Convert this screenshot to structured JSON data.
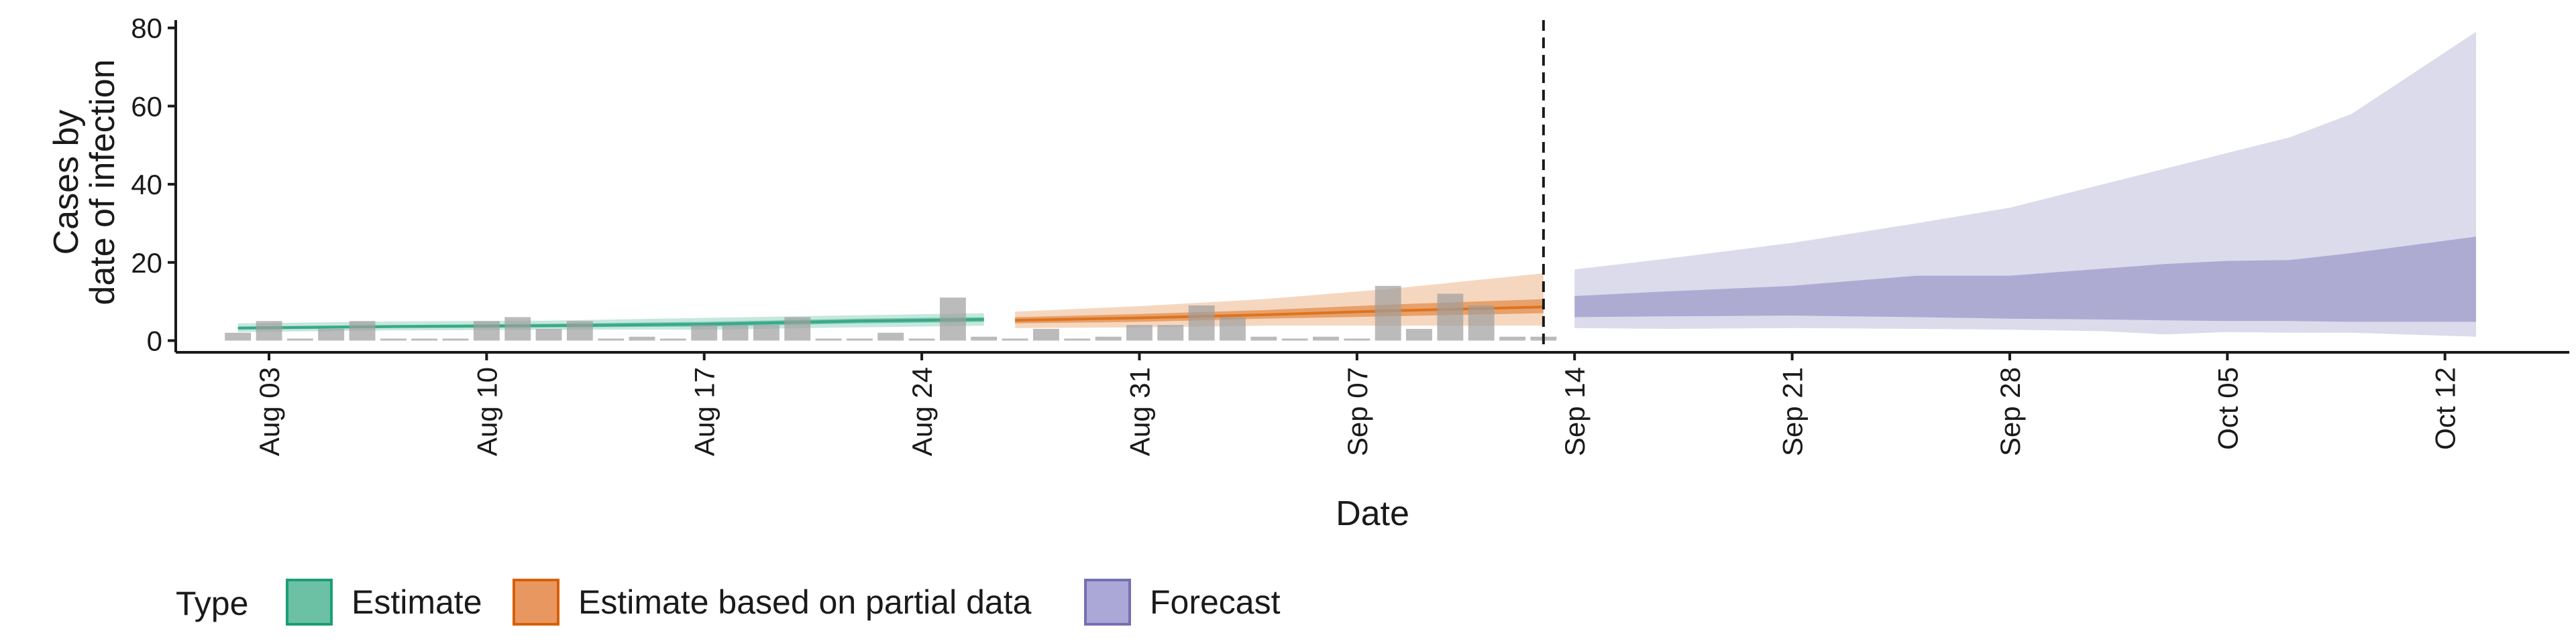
{
  "chart_data": {
    "type": "area",
    "xlabel": "Date",
    "ylabel_lines": [
      "Cases by",
      "date of infection"
    ],
    "ylim": [
      -3,
      82
    ],
    "yticks": [
      0,
      20,
      40,
      60,
      80
    ],
    "x_start": "2024-07-31",
    "x_end": "2024-10-16",
    "xticks": [
      {
        "date": "2024-08-03",
        "label": "Aug 03"
      },
      {
        "date": "2024-08-10",
        "label": "Aug 10"
      },
      {
        "date": "2024-08-17",
        "label": "Aug 17"
      },
      {
        "date": "2024-08-24",
        "label": "Aug 24"
      },
      {
        "date": "2024-08-31",
        "label": "Aug 31"
      },
      {
        "date": "2024-09-07",
        "label": "Sep 07"
      },
      {
        "date": "2024-09-14",
        "label": "Sep 14"
      },
      {
        "date": "2024-09-21",
        "label": "Sep 21"
      },
      {
        "date": "2024-09-28",
        "label": "Sep 28"
      },
      {
        "date": "2024-10-05",
        "label": "Oct 05"
      },
      {
        "date": "2024-10-12",
        "label": "Oct 12"
      }
    ],
    "forecast_line_date": "2024-09-13",
    "reported_cases": {
      "dates": [
        "2024-08-02",
        "2024-08-03",
        "2024-08-04",
        "2024-08-05",
        "2024-08-06",
        "2024-08-07",
        "2024-08-08",
        "2024-08-09",
        "2024-08-10",
        "2024-08-11",
        "2024-08-12",
        "2024-08-13",
        "2024-08-14",
        "2024-08-15",
        "2024-08-16",
        "2024-08-17",
        "2024-08-18",
        "2024-08-19",
        "2024-08-20",
        "2024-08-21",
        "2024-08-22",
        "2024-08-23",
        "2024-08-24",
        "2024-08-25",
        "2024-08-26",
        "2024-08-27",
        "2024-08-28",
        "2024-08-29",
        "2024-08-30",
        "2024-08-31",
        "2024-09-01",
        "2024-09-02",
        "2024-09-03",
        "2024-09-04",
        "2024-09-05",
        "2024-09-06",
        "2024-09-07",
        "2024-09-08",
        "2024-09-09",
        "2024-09-10",
        "2024-09-11",
        "2024-09-12",
        "2024-09-13"
      ],
      "values": [
        2,
        5,
        0,
        3,
        5,
        0,
        0,
        0,
        5,
        6,
        3,
        5,
        0,
        1,
        0,
        4,
        4,
        4,
        6,
        0,
        0,
        2,
        0,
        11,
        1,
        0,
        3,
        0,
        1,
        4,
        4,
        9,
        6,
        1,
        0,
        1,
        0,
        14,
        3,
        12,
        9,
        1,
        1
      ]
    },
    "series": [
      {
        "name": "Estimate",
        "color": "#1b9e77",
        "dates": [
          "2024-08-02",
          "2024-08-07",
          "2024-08-12",
          "2024-08-17",
          "2024-08-22",
          "2024-08-26"
        ],
        "outer_low": [
          2.2,
          2.6,
          2.8,
          2.8,
          3.4,
          3.8
        ],
        "inner_low": [
          2.8,
          3.2,
          3.4,
          3.6,
          4.4,
          4.8
        ],
        "median": [
          3.2,
          3.6,
          3.8,
          4.2,
          5.0,
          5.4
        ],
        "inner_high": [
          3.6,
          4.0,
          4.3,
          4.8,
          5.6,
          6.0
        ],
        "outer_high": [
          4.4,
          4.9,
          5.1,
          5.8,
          6.5,
          7.0
        ]
      },
      {
        "name": "Estimate based on partial data",
        "color": "#d95f02",
        "dates": [
          "2024-08-27",
          "2024-08-31",
          "2024-09-04",
          "2024-09-08",
          "2024-09-13"
        ],
        "outer_low": [
          3.2,
          3.4,
          3.8,
          3.8,
          3.8
        ],
        "inner_low": [
          4.4,
          4.8,
          5.6,
          6.2,
          7.0
        ],
        "median": [
          5.2,
          5.8,
          6.6,
          7.6,
          8.6
        ],
        "inner_high": [
          6.0,
          6.8,
          7.8,
          9.2,
          10.6
        ],
        "outer_high": [
          7.4,
          8.8,
          10.6,
          13.2,
          17.2
        ]
      },
      {
        "name": "Forecast",
        "color": "#7570b3",
        "dates": [
          "2024-09-14",
          "2024-09-17",
          "2024-09-21",
          "2024-09-25",
          "2024-09-28",
          "2024-10-01",
          "2024-10-03",
          "2024-10-05",
          "2024-10-07",
          "2024-10-09",
          "2024-10-13"
        ],
        "outer_low": [
          3.2,
          3.0,
          3.2,
          3.0,
          2.8,
          2.4,
          1.6,
          2.2,
          2.0,
          2.0,
          1.0
        ],
        "inner_low": [
          6.0,
          6.2,
          6.4,
          6.0,
          5.6,
          5.4,
          5.2,
          5.0,
          5.0,
          4.8,
          4.8
        ],
        "inner_high": [
          11.4,
          12.6,
          14.0,
          16.6,
          16.6,
          18.4,
          19.6,
          20.4,
          20.6,
          22.4,
          26.6
        ],
        "outer_high": [
          18.2,
          21.0,
          25.0,
          30.0,
          34.0,
          40.0,
          44.0,
          48.0,
          52.0,
          58.0,
          79.0
        ]
      }
    ],
    "legend": {
      "title": "Type",
      "position": "bottom",
      "entries": [
        {
          "label": "Estimate",
          "fill": "#6cc1a4",
          "border": "#1b9e77"
        },
        {
          "label": "Estimate based on partial data",
          "fill": "#e99761",
          "border": "#d95f02"
        },
        {
          "label": "Forecast",
          "fill": "#aba7d6",
          "border": "#7570b3"
        }
      ]
    },
    "grid": false
  }
}
